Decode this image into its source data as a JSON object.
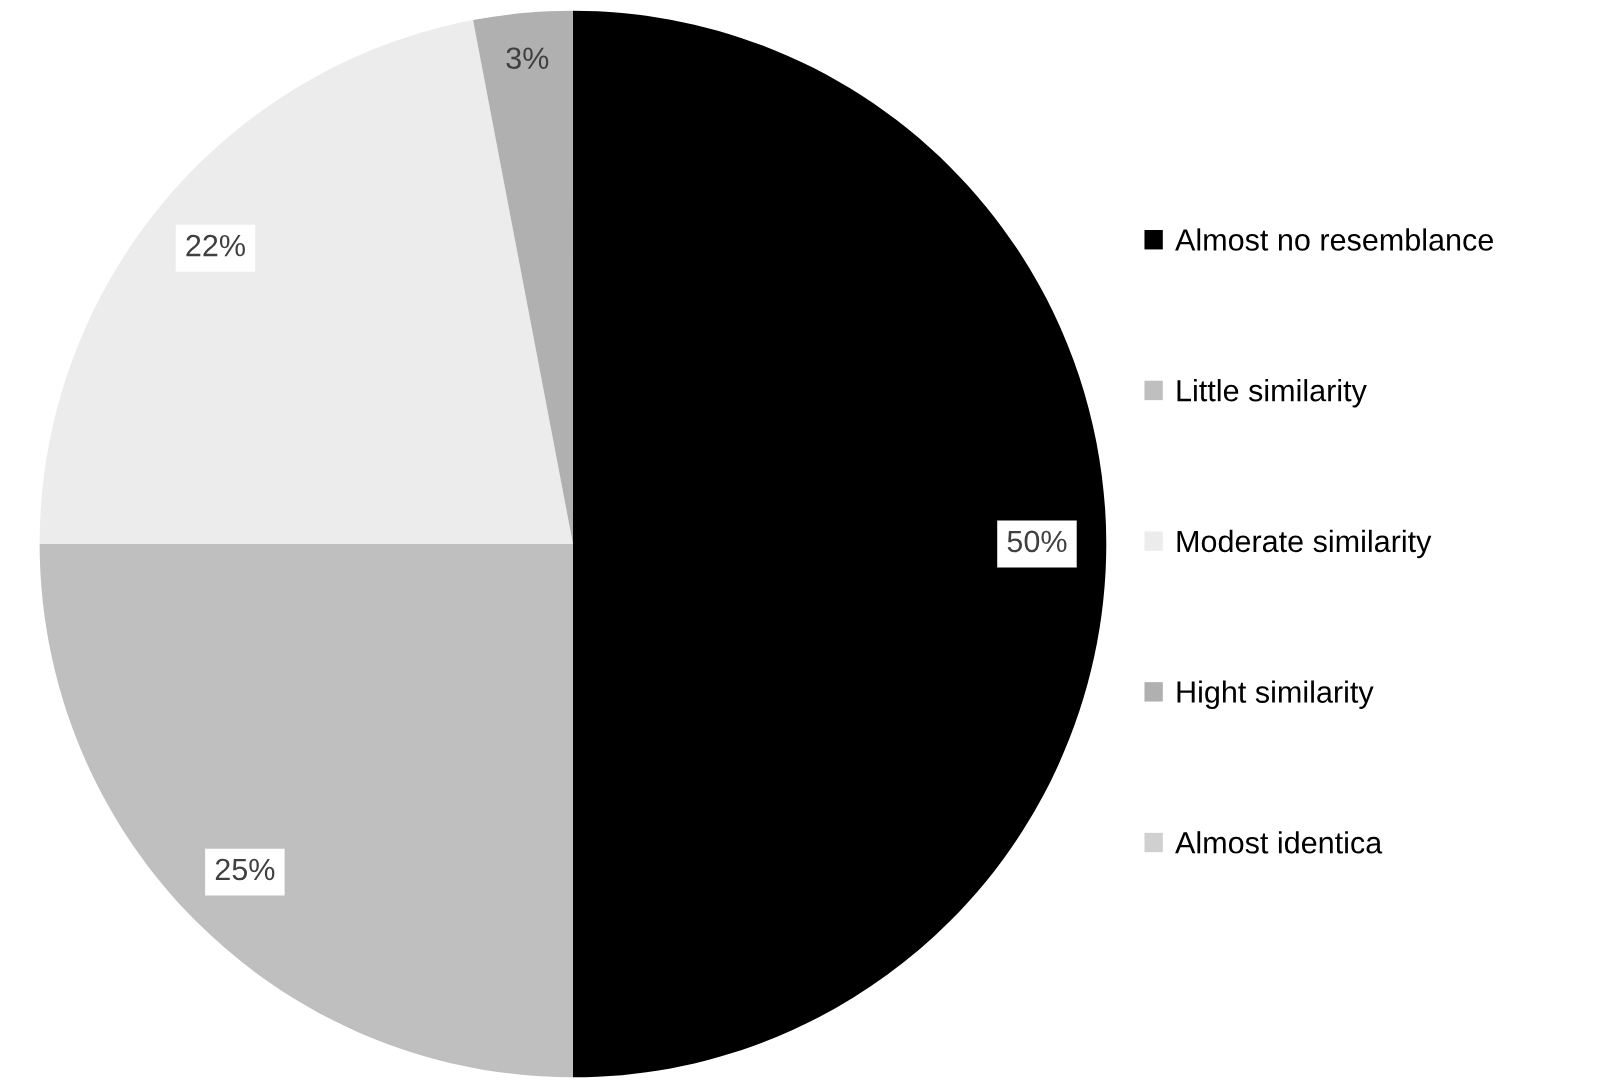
{
  "chart_data": {
    "type": "pie",
    "categories": [
      "Almost no resemblance",
      "Little similarity",
      "Moderate similarity",
      "Hight similarity",
      "Almost identica"
    ],
    "values": [
      50,
      25,
      22,
      3,
      0
    ],
    "value_labels": [
      "50%",
      "25%",
      "22%",
      "3%",
      null
    ],
    "colors": [
      "#000000",
      "#bfbfbf",
      "#ececec",
      "#b0b0b0",
      "#d0d0d0"
    ],
    "legend": "right"
  }
}
